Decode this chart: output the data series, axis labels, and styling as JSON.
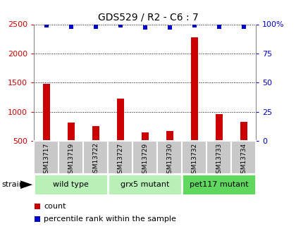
{
  "title": "GDS529 / R2 - C6 : 7",
  "samples": [
    "GSM13717",
    "GSM13719",
    "GSM13722",
    "GSM13727",
    "GSM13729",
    "GSM13730",
    "GSM13732",
    "GSM13733",
    "GSM13734"
  ],
  "counts": [
    1480,
    810,
    750,
    1230,
    650,
    670,
    2280,
    960,
    830
  ],
  "percentiles": [
    99,
    98,
    98,
    99,
    97,
    97,
    99,
    98,
    98
  ],
  "groups": [
    {
      "label": "wild type",
      "start": 0,
      "end": 3,
      "color": "#b8f0b8"
    },
    {
      "label": "grx5 mutant",
      "start": 3,
      "end": 6,
      "color": "#b8f0b8"
    },
    {
      "label": "pet117 mutant",
      "start": 6,
      "end": 9,
      "color": "#60d860"
    }
  ],
  "bar_color": "#cc0000",
  "dot_color": "#0000cc",
  "ylim_left": [
    500,
    2500
  ],
  "ylim_right": [
    0,
    100
  ],
  "yticks_left": [
    500,
    1000,
    1500,
    2000,
    2500
  ],
  "yticks_right": [
    0,
    25,
    50,
    75,
    100
  ],
  "grid_color": "#000000",
  "xlabel_color_left": "#cc0000",
  "xlabel_color_right": "#0000cc",
  "strain_label": "strain",
  "legend_count": "count",
  "legend_percentile": "percentile rank within the sample",
  "sample_bg": "#c8c8c8",
  "right_yticklabels": [
    "0",
    "25",
    "50",
    "75",
    "100%"
  ]
}
